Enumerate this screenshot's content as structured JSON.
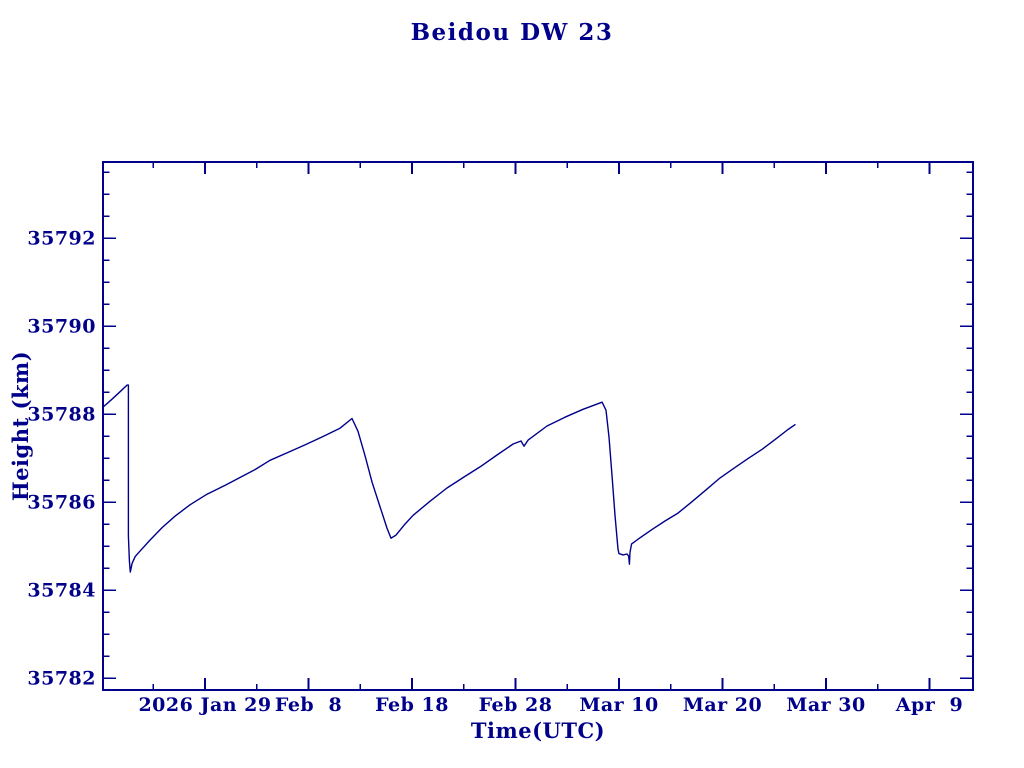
{
  "chart_data": {
    "type": "line",
    "title": "Beidou DW 23",
    "xlabel": "Time(UTC)",
    "ylabel": "Height (km)",
    "x_unit": "days relative to 2026 Jan 29",
    "xlim": [
      -9.86,
      74.2
    ],
    "ylim": [
      35781.73,
      35793.73
    ],
    "grid": false,
    "legend": "none",
    "x_major_ticks": [
      {
        "day": 0,
        "label": "2026 Jan 29"
      },
      {
        "day": 10,
        "label": "Feb  8"
      },
      {
        "day": 20,
        "label": "Feb 18"
      },
      {
        "day": 30,
        "label": "Feb 28"
      },
      {
        "day": 40,
        "label": "Mar 10"
      },
      {
        "day": 50,
        "label": "Mar 20"
      },
      {
        "day": 60,
        "label": "Mar 30"
      },
      {
        "day": 70,
        "label": "Apr  9"
      }
    ],
    "x_minor_ticks": [
      -5,
      5,
      15,
      25,
      35,
      45,
      55,
      65
    ],
    "y_major_ticks": [
      35782,
      35784,
      35786,
      35788,
      35790,
      35792
    ],
    "y_minor_ticks": [
      35782.5,
      35783,
      35783.5,
      35784.5,
      35785,
      35785.5,
      35786.5,
      35787,
      35787.5,
      35788.5,
      35789,
      35789.5,
      35790.5,
      35791,
      35791.5,
      35792.5,
      35793,
      35793.5
    ],
    "colors": {
      "line": "#00008B",
      "text": "#00008B",
      "frame": "#00008B",
      "background": "#ffffff"
    },
    "series": [
      {
        "name": "Beidou DW 23 height",
        "points": [
          [
            -9.86,
            35788.16
          ],
          [
            -8.99,
            35788.34
          ],
          [
            -8.21,
            35788.51
          ],
          [
            -7.54,
            35788.66
          ],
          [
            -7.41,
            35788.66
          ],
          [
            -7.41,
            35785.23
          ],
          [
            -7.31,
            35784.66
          ],
          [
            -7.22,
            35784.41
          ],
          [
            -7.05,
            35784.61
          ],
          [
            -6.76,
            35784.76
          ],
          [
            -6.47,
            35784.84
          ],
          [
            -5.31,
            35785.14
          ],
          [
            -4.15,
            35785.42
          ],
          [
            -2.9,
            35785.68
          ],
          [
            -1.45,
            35785.94
          ],
          [
            0.19,
            35786.18
          ],
          [
            1.93,
            35786.38
          ],
          [
            3.38,
            35786.56
          ],
          [
            4.83,
            35786.74
          ],
          [
            6.28,
            35786.95
          ],
          [
            8.02,
            35787.13
          ],
          [
            9.66,
            35787.3
          ],
          [
            11.3,
            35787.48
          ],
          [
            13.04,
            35787.68
          ],
          [
            14.2,
            35787.9
          ],
          [
            14.78,
            35787.61
          ],
          [
            15.46,
            35787.05
          ],
          [
            16.14,
            35786.45
          ],
          [
            16.91,
            35785.89
          ],
          [
            17.58,
            35785.41
          ],
          [
            17.97,
            35785.18
          ],
          [
            18.45,
            35785.25
          ],
          [
            19.32,
            35785.5
          ],
          [
            20.1,
            35785.7
          ],
          [
            21.74,
            35786.02
          ],
          [
            23.38,
            35786.32
          ],
          [
            25.02,
            35786.57
          ],
          [
            26.57,
            35786.8
          ],
          [
            28.21,
            35787.07
          ],
          [
            29.76,
            35787.32
          ],
          [
            30.53,
            35787.39
          ],
          [
            30.82,
            35787.27
          ],
          [
            31.21,
            35787.41
          ],
          [
            33.04,
            35787.73
          ],
          [
            34.78,
            35787.93
          ],
          [
            36.52,
            35788.11
          ],
          [
            38.36,
            35788.27
          ],
          [
            38.74,
            35788.09
          ],
          [
            39.03,
            35787.48
          ],
          [
            39.32,
            35786.61
          ],
          [
            39.61,
            35785.7
          ],
          [
            39.9,
            35784.93
          ],
          [
            40.0,
            35784.83
          ],
          [
            40.39,
            35784.8
          ],
          [
            40.77,
            35784.82
          ],
          [
            40.93,
            35784.77
          ],
          [
            41.0,
            35784.59
          ],
          [
            41.06,
            35784.86
          ],
          [
            41.21,
            35785.05
          ],
          [
            42.03,
            35785.19
          ],
          [
            43.19,
            35785.38
          ],
          [
            44.44,
            35785.57
          ],
          [
            45.7,
            35785.75
          ],
          [
            47.05,
            35786.01
          ],
          [
            48.41,
            35786.28
          ],
          [
            49.76,
            35786.55
          ],
          [
            51.11,
            35786.77
          ],
          [
            52.46,
            35786.99
          ],
          [
            53.82,
            35787.2
          ],
          [
            55.17,
            35787.44
          ],
          [
            56.33,
            35787.65
          ],
          [
            57.0,
            35787.76
          ]
        ]
      }
    ]
  }
}
